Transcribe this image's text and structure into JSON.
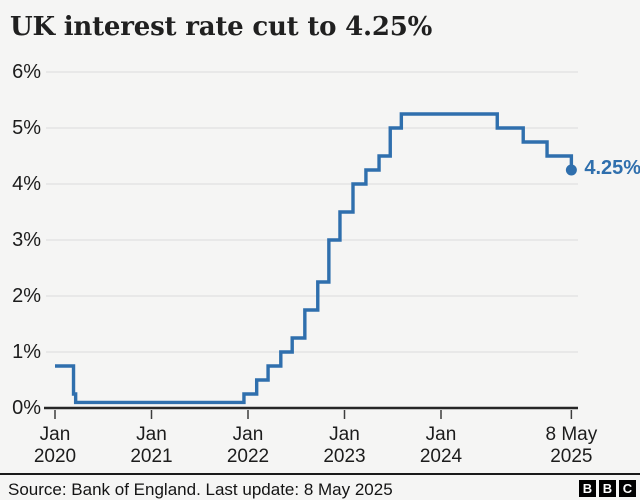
{
  "header": {
    "title": "UK interest rate cut to 4.25%"
  },
  "chart_data": {
    "type": "line",
    "step": true,
    "title": "UK interest rate cut to 4.25%",
    "xlabel": "",
    "ylabel": "",
    "unit": "%",
    "ylim": [
      0,
      6
    ],
    "grid": true,
    "legend": false,
    "yticks": [
      {
        "value": 6,
        "label": "6%"
      },
      {
        "value": 5,
        "label": "5%"
      },
      {
        "value": 4,
        "label": "4%"
      },
      {
        "value": 3,
        "label": "3%"
      },
      {
        "value": 2,
        "label": "2%"
      },
      {
        "value": 1,
        "label": "1%"
      },
      {
        "value": 0,
        "label": "0%"
      }
    ],
    "xticks": [
      {
        "t": 2020.0,
        "line1": "Jan",
        "line2": "2020"
      },
      {
        "t": 2021.0,
        "line1": "Jan",
        "line2": "2021"
      },
      {
        "t": 2022.0,
        "line1": "Jan",
        "line2": "2022"
      },
      {
        "t": 2023.0,
        "line1": "Jan",
        "line2": "2023"
      },
      {
        "t": 2024.0,
        "line1": "Jan",
        "line2": "2024"
      },
      {
        "t": 2025.351,
        "line1": "8 May",
        "line2": "2025"
      }
    ],
    "series": [
      {
        "name": "UK interest rate",
        "color": "#2f6fad",
        "points": [
          {
            "date": "Jan 2020",
            "t": 2020.0,
            "value": 0.75
          },
          {
            "date": "11 Mar 2020",
            "t": 2020.192,
            "value": 0.25
          },
          {
            "date": "19 Mar 2020",
            "t": 2020.214,
            "value": 0.1
          },
          {
            "date": "16 Dec 2021",
            "t": 2021.958,
            "value": 0.25
          },
          {
            "date": "3 Feb 2022",
            "t": 2022.09,
            "value": 0.5
          },
          {
            "date": "17 Mar 2022",
            "t": 2022.208,
            "value": 0.75
          },
          {
            "date": "5 May 2022",
            "t": 2022.34,
            "value": 1.0
          },
          {
            "date": "16 Jun 2022",
            "t": 2022.458,
            "value": 1.25
          },
          {
            "date": "4 Aug 2022",
            "t": 2022.589,
            "value": 1.75
          },
          {
            "date": "22 Sep 2022",
            "t": 2022.723,
            "value": 2.25
          },
          {
            "date": "3 Nov 2022",
            "t": 2022.838,
            "value": 3.0
          },
          {
            "date": "15 Dec 2022",
            "t": 2022.953,
            "value": 3.5
          },
          {
            "date": "2 Feb 2023",
            "t": 2023.088,
            "value": 4.0
          },
          {
            "date": "23 Mar 2023",
            "t": 2023.222,
            "value": 4.25
          },
          {
            "date": "11 May 2023",
            "t": 2023.358,
            "value": 4.5
          },
          {
            "date": "22 Jun 2023",
            "t": 2023.474,
            "value": 5.0
          },
          {
            "date": "3 Aug 2023",
            "t": 2023.589,
            "value": 5.25
          },
          {
            "date": "1 Aug 2024",
            "t": 2024.583,
            "value": 5.0
          },
          {
            "date": "7 Nov 2024",
            "t": 2024.852,
            "value": 4.75
          },
          {
            "date": "6 Feb 2025",
            "t": 2025.099,
            "value": 4.5
          },
          {
            "date": "8 May 2025",
            "t": 2025.351,
            "value": 4.25
          }
        ]
      }
    ],
    "end_label": "4.25%"
  },
  "footer": {
    "source": "Source: Bank of England. Last update: 8 May 2025",
    "logo_letters": [
      "B",
      "B",
      "C"
    ]
  }
}
